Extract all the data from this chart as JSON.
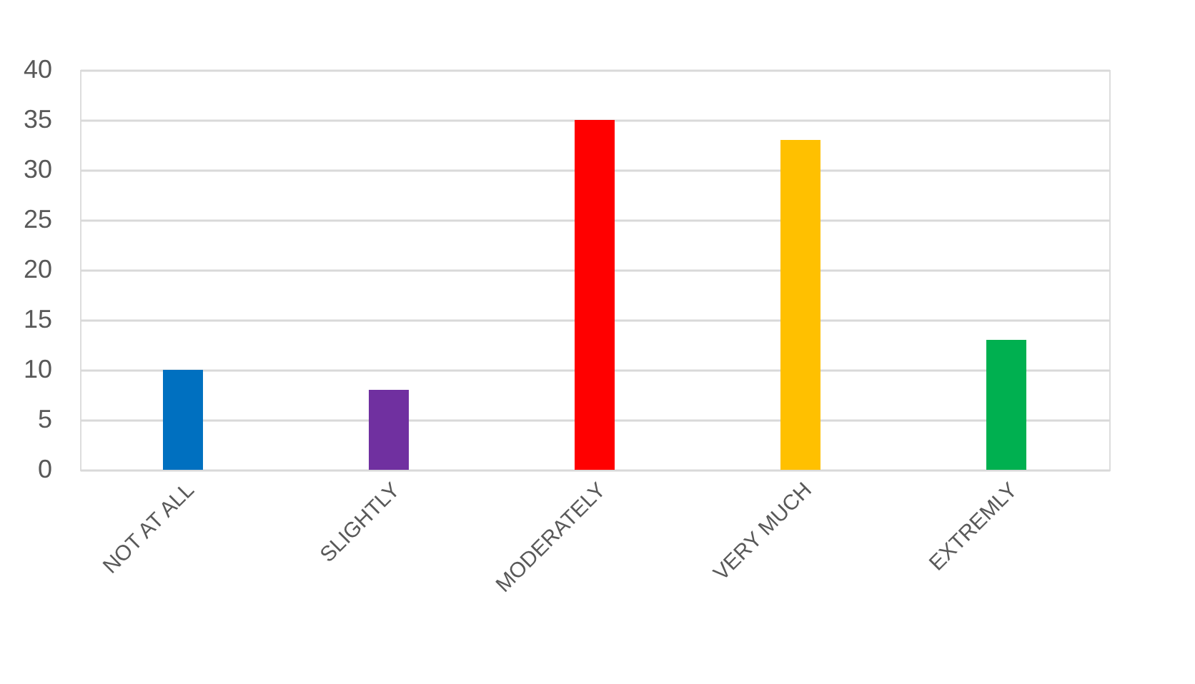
{
  "chart_data": {
    "type": "bar",
    "categories": [
      "NOT AT ALL",
      "SLIGHTLY",
      "MODERATELY",
      "VERY MUCH",
      "EXTREMLY"
    ],
    "values": [
      10,
      8,
      35,
      33,
      13
    ],
    "colors": [
      "#0070c0",
      "#7030a0",
      "#ff0000",
      "#ffc000",
      "#00b050"
    ],
    "ylim": [
      0,
      40
    ],
    "yticks": [
      0,
      5,
      10,
      15,
      20,
      25,
      30,
      35,
      40
    ],
    "grid": "y"
  }
}
